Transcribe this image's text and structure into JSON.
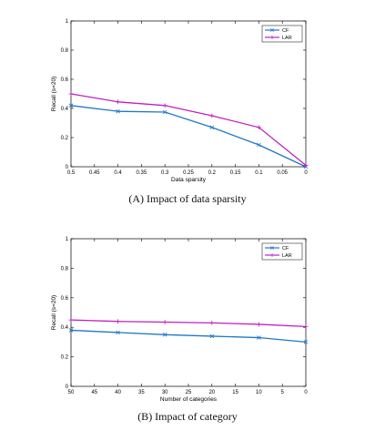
{
  "chart_data": [
    {
      "type": "line",
      "xlabel": "Data sparsity",
      "ylabel": "Recall (s=20)",
      "x_reversed": true,
      "xlim": [
        0.5,
        0
      ],
      "ylim": [
        0,
        1
      ],
      "xticks": [
        "0.5",
        "0.45",
        "0.4",
        "0.35",
        "0.3",
        "0.25",
        "0.2",
        "0.15",
        "0.1",
        "0.05",
        "0"
      ],
      "yticks": [
        "0",
        "0.2",
        "0.4",
        "0.6",
        "0.8",
        "1"
      ],
      "legend_position": "top-right",
      "grid": false,
      "x": [
        0.5,
        0.4,
        0.3,
        0.2,
        0.1,
        0
      ],
      "series": [
        {
          "name": "CF",
          "color": "#1f78c8",
          "marker": "x",
          "values": [
            0.42,
            0.38,
            0.375,
            0.27,
            0.15,
            0.0
          ]
        },
        {
          "name": "LAR",
          "color": "#c020c0",
          "marker": "+",
          "values": [
            0.5,
            0.445,
            0.42,
            0.35,
            0.27,
            0.01
          ]
        }
      ],
      "caption": "(A) Impact of data sparsity"
    },
    {
      "type": "line",
      "xlabel": "Number of categories",
      "ylabel": "Recall (s=20)",
      "x_reversed": true,
      "xlim": [
        50,
        0
      ],
      "ylim": [
        0,
        1
      ],
      "xticks": [
        "50",
        "45",
        "40",
        "35",
        "30",
        "25",
        "20",
        "15",
        "10",
        "5",
        "0"
      ],
      "yticks": [
        "0",
        "0.2",
        "0.4",
        "0.6",
        "0.8",
        "1"
      ],
      "legend_position": "top-right",
      "grid": false,
      "x": [
        50,
        40,
        30,
        20,
        10,
        0
      ],
      "series": [
        {
          "name": "CF",
          "color": "#1f78c8",
          "marker": "x",
          "values": [
            0.38,
            0.365,
            0.35,
            0.34,
            0.33,
            0.3
          ]
        },
        {
          "name": "LAR",
          "color": "#c020c0",
          "marker": "+",
          "values": [
            0.45,
            0.44,
            0.435,
            0.43,
            0.42,
            0.405
          ]
        }
      ],
      "caption": "(B) Impact of category"
    }
  ]
}
